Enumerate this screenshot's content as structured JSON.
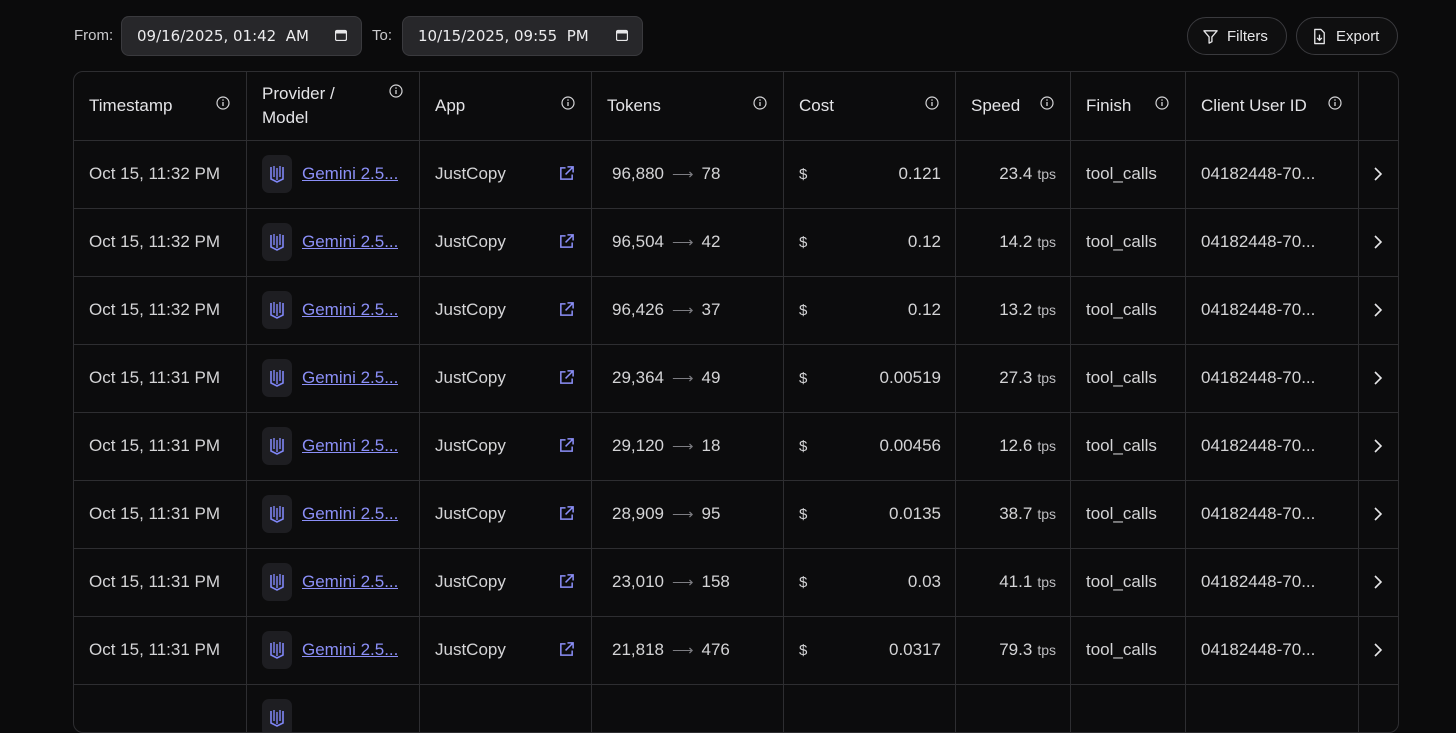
{
  "filters": {
    "from_label": "From:",
    "from_value": "09/16/2025, 01:42  AM",
    "to_label": "To:",
    "to_value": "10/15/2025, 09:55  PM",
    "filters_label": "Filters",
    "export_label": "Export"
  },
  "columns": {
    "timestamp": "Timestamp",
    "provider_line1": "Provider /",
    "provider_line2": "Model",
    "app": "App",
    "tokens": "Tokens",
    "cost": "Cost",
    "speed": "Speed",
    "finish": "Finish",
    "client_user_id": "Client User ID"
  },
  "rows": [
    {
      "timestamp": "Oct 15, 11:32 PM",
      "model": "Gemini 2.5...",
      "app": "JustCopy",
      "tokens_in": "96,880",
      "tokens_out": "78",
      "currency": "$",
      "cost": "0.121",
      "speed": "23.4",
      "unit": "tps",
      "finish": "tool_calls",
      "user_id": "04182448-70..."
    },
    {
      "timestamp": "Oct 15, 11:32 PM",
      "model": "Gemini 2.5...",
      "app": "JustCopy",
      "tokens_in": "96,504",
      "tokens_out": "42",
      "currency": "$",
      "cost": "0.12",
      "speed": "14.2",
      "unit": "tps",
      "finish": "tool_calls",
      "user_id": "04182448-70..."
    },
    {
      "timestamp": "Oct 15, 11:32 PM",
      "model": "Gemini 2.5...",
      "app": "JustCopy",
      "tokens_in": "96,426",
      "tokens_out": "37",
      "currency": "$",
      "cost": "0.12",
      "speed": "13.2",
      "unit": "tps",
      "finish": "tool_calls",
      "user_id": "04182448-70..."
    },
    {
      "timestamp": "Oct 15, 11:31 PM",
      "model": "Gemini 2.5...",
      "app": "JustCopy",
      "tokens_in": "29,364",
      "tokens_out": "49",
      "currency": "$",
      "cost": "0.00519",
      "speed": "27.3",
      "unit": "tps",
      "finish": "tool_calls",
      "user_id": "04182448-70..."
    },
    {
      "timestamp": "Oct 15, 11:31 PM",
      "model": "Gemini 2.5...",
      "app": "JustCopy",
      "tokens_in": "29,120",
      "tokens_out": "18",
      "currency": "$",
      "cost": "0.00456",
      "speed": "12.6",
      "unit": "tps",
      "finish": "tool_calls",
      "user_id": "04182448-70..."
    },
    {
      "timestamp": "Oct 15, 11:31 PM",
      "model": "Gemini 2.5...",
      "app": "JustCopy",
      "tokens_in": "28,909",
      "tokens_out": "95",
      "currency": "$",
      "cost": "0.0135",
      "speed": "38.7",
      "unit": "tps",
      "finish": "tool_calls",
      "user_id": "04182448-70..."
    },
    {
      "timestamp": "Oct 15, 11:31 PM",
      "model": "Gemini 2.5...",
      "app": "JustCopy",
      "tokens_in": "23,010",
      "tokens_out": "158",
      "currency": "$",
      "cost": "0.03",
      "speed": "41.1",
      "unit": "tps",
      "finish": "tool_calls",
      "user_id": "04182448-70..."
    },
    {
      "timestamp": "Oct 15, 11:31 PM",
      "model": "Gemini 2.5...",
      "app": "JustCopy",
      "tokens_in": "21,818",
      "tokens_out": "476",
      "currency": "$",
      "cost": "0.0317",
      "speed": "79.3",
      "unit": "tps",
      "finish": "tool_calls",
      "user_id": "04182448-70..."
    }
  ],
  "colors": {
    "accent": "#8b8ff7",
    "border": "#2e2e31",
    "background": "#0b0b0c"
  }
}
